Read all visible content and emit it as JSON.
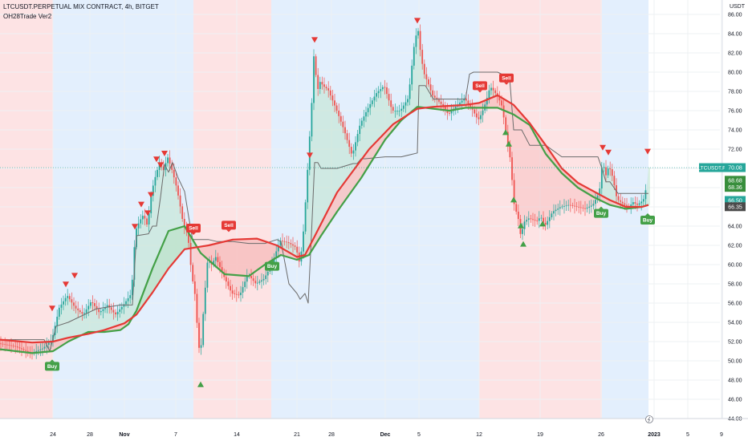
{
  "chart_title": "LTCUSDT.PERPETUAL MIX CONTRACT, 4h, BITGET",
  "indicator_name": "OH28Trade Ver2",
  "currency": "USDT",
  "chart_data": {
    "type": "line",
    "symbol": "LTCUSDT.PERPETUAL MIX CONTRACT",
    "interval": "4h",
    "exchange": "BITGET",
    "indicator": "OH28Trade Ver2",
    "ylim": [
      44,
      87
    ],
    "y_ticks": [
      "86.00",
      "84.00",
      "82.00",
      "80.00",
      "78.00",
      "76.00",
      "74.00",
      "72.00",
      "70.00",
      "68.00",
      "66.00",
      "64.00",
      "62.00",
      "60.00",
      "58.00",
      "56.00",
      "54.00",
      "52.00",
      "50.00",
      "48.00",
      "46.00",
      "44.00"
    ],
    "x_tick_labels": [
      "24",
      "28",
      "Nov",
      "7",
      "14",
      "21",
      "28",
      "Dec",
      "5",
      "12",
      "19",
      "26",
      "2023",
      "5",
      "9"
    ],
    "x_tick_index": [
      66,
      112,
      155,
      219,
      295,
      370,
      413,
      480,
      522,
      597,
      673,
      749,
      815,
      857,
      899
    ],
    "price_series": {
      "name": "LTCUSDT.P",
      "x": [
        0,
        20,
        40,
        55,
        66,
        75,
        85,
        95,
        105,
        115,
        125,
        135,
        145,
        155,
        165,
        170,
        175,
        180,
        185,
        190,
        195,
        200,
        205,
        210,
        215,
        220,
        225,
        230,
        235,
        240,
        245,
        248,
        251,
        255,
        260,
        265,
        270,
        280,
        290,
        300,
        310,
        320,
        330,
        340,
        350,
        360,
        370,
        375,
        380,
        385,
        390,
        393,
        396,
        400,
        405,
        410,
        420,
        430,
        440,
        450,
        460,
        470,
        480,
        490,
        500,
        510,
        518,
        522,
        526,
        530,
        535,
        540,
        550,
        560,
        570,
        580,
        590,
        597,
        602,
        607,
        612,
        617,
        622,
        627,
        632,
        637,
        642,
        647,
        650,
        655,
        660,
        670,
        675,
        680,
        690,
        700,
        710,
        720,
        730,
        740,
        748,
        752,
        756,
        760,
        765,
        770,
        775,
        780,
        785,
        790,
        795,
        800,
        805,
        808
      ],
      "y": [
        51.8,
        51.5,
        50.8,
        51.3,
        52.2,
        55.5,
        56.8,
        55.5,
        54.8,
        56.2,
        55.0,
        55.8,
        54.8,
        55.8,
        57.0,
        63.5,
        64.5,
        65.2,
        64.0,
        67.5,
        69.2,
        70.6,
        69.8,
        71.2,
        70.0,
        68.5,
        66.5,
        64.0,
        63.4,
        59.0,
        56.5,
        52.0,
        50.5,
        55.5,
        60.5,
        60.0,
        60.8,
        58.8,
        57.0,
        56.8,
        59.0,
        58.0,
        58.5,
        60.0,
        62.5,
        62.3,
        61.8,
        60.0,
        64.0,
        70.5,
        77.2,
        83.0,
        77.8,
        79.0,
        78.5,
        78.2,
        76.2,
        74.0,
        71.3,
        74.6,
        76.3,
        77.8,
        78.6,
        76.0,
        76.0,
        77.3,
        83.3,
        84.5,
        81.5,
        79.8,
        78.8,
        77.6,
        76.8,
        75.6,
        76.5,
        77.3,
        76.1,
        75.0,
        75.8,
        77.0,
        78.5,
        78.0,
        77.4,
        76.4,
        73.5,
        71.0,
        66.2,
        64.8,
        63.0,
        64.5,
        64.8,
        64.5,
        65.0,
        64.0,
        65.5,
        66.0,
        66.2,
        66.0,
        65.8,
        66.2,
        67.5,
        70.8,
        69.2,
        70.3,
        69.0,
        66.8,
        66.5,
        66.2,
        66.0,
        66.5,
        66.2,
        66.5,
        67.0,
        70.1
      ]
    },
    "red_ma": {
      "name": "",
      "x": [
        0,
        40,
        66,
        85,
        110,
        130,
        155,
        170,
        190,
        210,
        230,
        260,
        290,
        320,
        345,
        370,
        380,
        390,
        420,
        460,
        490,
        520,
        540,
        560,
        580,
        597,
        620,
        640,
        660,
        680,
        700,
        720,
        740,
        760,
        780,
        800,
        808
      ],
      "y": [
        52.2,
        51.9,
        52.0,
        52.4,
        52.8,
        53.2,
        53.9,
        54.8,
        57.1,
        59.6,
        61.6,
        62.0,
        62.6,
        62.7,
        62.0,
        60.8,
        61.0,
        62.6,
        67.5,
        72.0,
        74.6,
        76.2,
        76.4,
        76.5,
        76.6,
        76.8,
        77.6,
        76.6,
        74.7,
        72.4,
        70.0,
        68.5,
        67.6,
        66.7,
        66.0,
        66.0,
        66.2
      ]
    },
    "green_ma": {
      "name": "",
      "x": [
        0,
        40,
        66,
        85,
        110,
        130,
        150,
        160,
        170,
        190,
        210,
        230,
        250,
        280,
        310,
        330,
        350,
        370,
        385,
        400,
        420,
        450,
        480,
        500,
        520,
        540,
        560,
        580,
        600,
        620,
        640,
        660,
        680,
        700,
        720,
        740,
        760,
        780,
        800,
        808
      ],
      "y": [
        51.2,
        50.8,
        51.0,
        52.0,
        53.0,
        53.0,
        53.2,
        53.8,
        55.2,
        59.6,
        63.5,
        64.0,
        61.2,
        59.0,
        58.8,
        60.0,
        61.0,
        60.5,
        61.0,
        63.0,
        65.5,
        69.0,
        73.0,
        75.0,
        76.4,
        76.2,
        76.0,
        76.3,
        76.3,
        76.3,
        75.6,
        74.5,
        71.5,
        69.5,
        68.0,
        67.0,
        66.2,
        65.8,
        66.0,
        66.2
      ]
    },
    "gray_line": {
      "name": "",
      "x": [
        0,
        55,
        62,
        70,
        85,
        120,
        150,
        165,
        170,
        185,
        190,
        195,
        200,
        205,
        210,
        215,
        222,
        230,
        235,
        240,
        260,
        270,
        290,
        310,
        330,
        345,
        350,
        360,
        370,
        374,
        380,
        384,
        388,
        392,
        396,
        400,
        420,
        440,
        445,
        450,
        455,
        480,
        500,
        520,
        522,
        530,
        540,
        560,
        580,
        585,
        590,
        595,
        600,
        620,
        635,
        640,
        650,
        660,
        680,
        700,
        720,
        745,
        750,
        755,
        760,
        770,
        790,
        808
      ],
      "y": [
        52.2,
        52.2,
        51.0,
        53.6,
        54.0,
        55.4,
        55.8,
        55.8,
        63.0,
        63.2,
        64.0,
        64.0,
        67.0,
        70.4,
        69.6,
        70.6,
        69.0,
        67.6,
        65.0,
        62.6,
        62.6,
        62.4,
        62.4,
        62.2,
        62.2,
        62.6,
        62.4,
        58.0,
        57.0,
        56.4,
        57.0,
        56.0,
        63.0,
        70.6,
        70.6,
        70.0,
        70.0,
        70.5,
        70.5,
        71.0,
        71.0,
        71.2,
        71.2,
        71.6,
        78.6,
        78.6,
        77.2,
        77.2,
        77.2,
        79.8,
        80.0,
        80.0,
        80.0,
        80.0,
        79.4,
        74.0,
        74.0,
        72.4,
        72.4,
        71.2,
        71.2,
        71.2,
        70.0,
        68.6,
        68.6,
        67.4,
        67.4,
        67.4
      ]
    },
    "sell_markers": [
      {
        "x": 241,
        "y": 63.5,
        "label": "Sell"
      },
      {
        "x": 285,
        "y": 63.8,
        "label": "Sell"
      },
      {
        "x": 598,
        "y": 78.3,
        "label": "Sell"
      },
      {
        "x": 631,
        "y": 79.1,
        "label": "Sell"
      }
    ],
    "buy_markers": [
      {
        "x": 65,
        "y": 49.8,
        "label": "Buy"
      },
      {
        "x": 339,
        "y": 60.2,
        "label": "Buy"
      },
      {
        "x": 749,
        "y": 65.7,
        "label": "Buy"
      },
      {
        "x": 807,
        "y": 65.0,
        "label": "Buy"
      }
    ],
    "down_arrows": [
      {
        "x": 65,
        "y": 55.4
      },
      {
        "x": 82,
        "y": 57.9
      },
      {
        "x": 93,
        "y": 58.8
      },
      {
        "x": 168,
        "y": 63.9
      },
      {
        "x": 176,
        "y": 66.2
      },
      {
        "x": 184,
        "y": 65.3
      },
      {
        "x": 188,
        "y": 67.2
      },
      {
        "x": 195,
        "y": 70.9
      },
      {
        "x": 200,
        "y": 70.3
      },
      {
        "x": 205,
        "y": 71.5
      },
      {
        "x": 392,
        "y": 83.3
      },
      {
        "x": 386,
        "y": 71.3
      },
      {
        "x": 520,
        "y": 85.3
      },
      {
        "x": 751,
        "y": 72.1
      },
      {
        "x": 758,
        "y": 71.6
      },
      {
        "x": 807,
        "y": 71.7
      }
    ],
    "up_arrows": [
      {
        "x": 250,
        "y": 47.6
      },
      {
        "x": 630,
        "y": 73.8
      },
      {
        "x": 634,
        "y": 72.6
      },
      {
        "x": 640,
        "y": 66.8
      },
      {
        "x": 649,
        "y": 64.1
      },
      {
        "x": 652,
        "y": 62.2
      },
      {
        "x": 676,
        "y": 64.3
      }
    ],
    "price_labels": [
      {
        "text": "LTCUSDT.P",
        "value": 70.08,
        "color": "#26a69a"
      },
      {
        "text": "70.08",
        "value": 70.08,
        "color": "#26a69a"
      },
      {
        "text": "68.68",
        "value": 68.68,
        "color": "#388e3c"
      },
      {
        "text": "68.36",
        "value": 68.36,
        "color": "#388e3c"
      },
      {
        "text": "66.50",
        "value": 66.5,
        "color": "#26a69a"
      },
      {
        "text": "66.35",
        "value": 66.35,
        "color": "#4a4a4a"
      }
    ],
    "background_zones": [
      {
        "from": 0,
        "to": 66,
        "color": "#fde3e4"
      },
      {
        "from": 66,
        "to": 241,
        "color": "#e3effd"
      },
      {
        "from": 241,
        "to": 338,
        "color": "#fde3e4"
      },
      {
        "from": 338,
        "to": 597,
        "color": "#e3effd"
      },
      {
        "from": 597,
        "to": 750,
        "color": "#fde3e4"
      },
      {
        "from": 750,
        "to": 808,
        "color": "#e3effd"
      }
    ],
    "colors": {
      "up": "#26a69a",
      "down": "#ef5350",
      "red_line": "#e53935",
      "green_line": "#43a047",
      "gray_line": "#6b6b6b",
      "green_fill": "#bfe3cd",
      "red_fill": "#f7c3c2",
      "sell": "#e53935",
      "buy": "#43a047",
      "grid": "#eef0f3"
    },
    "grid": true
  }
}
